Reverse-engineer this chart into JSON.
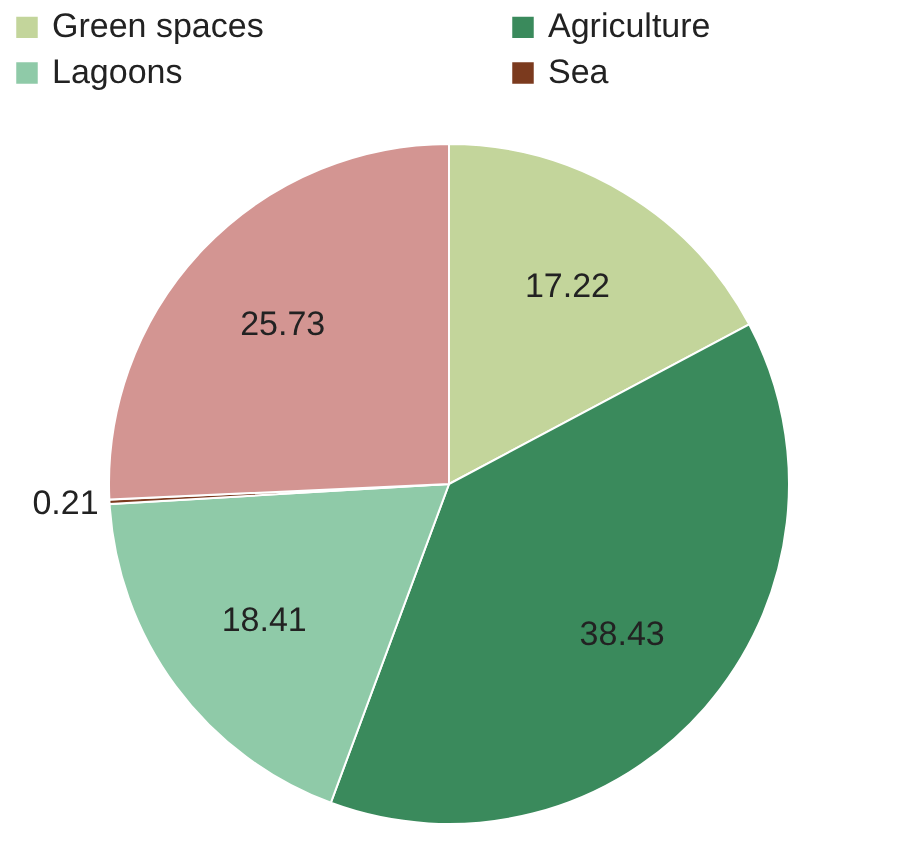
{
  "chart_data": {
    "type": "pie",
    "categories": [
      "Green spaces",
      "Agriculture",
      "Lagoons",
      "Sea",
      null
    ],
    "values": [
      17.22,
      38.43,
      18.41,
      0.21,
      25.73
    ],
    "colors": [
      "#c3d59b",
      "#3a8a5c",
      "#8fcaa8",
      "#7b3a1e",
      "#d39592"
    ],
    "data_labels": true,
    "legend": "top"
  }
}
